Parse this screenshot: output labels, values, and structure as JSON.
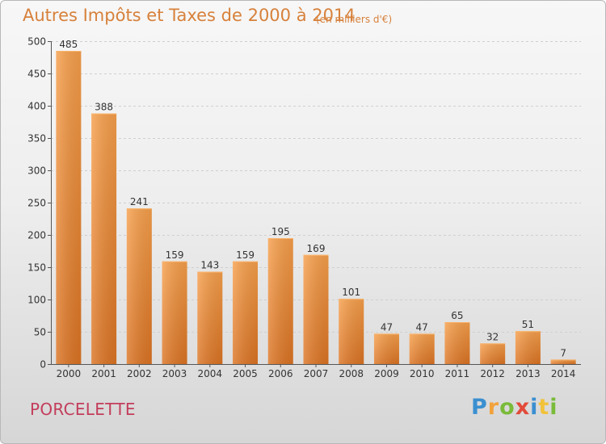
{
  "chart_data": {
    "type": "bar",
    "title": "Autres Impôts et Taxes de 2000 à 2014",
    "unit_note": "(en milliers d'€)",
    "categories": [
      "2000",
      "2001",
      "2002",
      "2003",
      "2004",
      "2005",
      "2006",
      "2007",
      "2008",
      "2009",
      "2010",
      "2011",
      "2012",
      "2013",
      "2014"
    ],
    "values": [
      485,
      388,
      241,
      159,
      143,
      159,
      195,
      169,
      101,
      47,
      47,
      65,
      32,
      51,
      7
    ],
    "ylim": [
      0,
      500
    ],
    "yticks": [
      0,
      50,
      100,
      150,
      200,
      250,
      300,
      350,
      400,
      450,
      500
    ],
    "grid": true,
    "bar_color": "#f0923a"
  },
  "footer": {
    "city": "PORCELETTE",
    "logo_letters": [
      {
        "ch": "P",
        "color": "#3a8fd0"
      },
      {
        "ch": "r",
        "color": "#f2a23a"
      },
      {
        "ch": "o",
        "color": "#7abb3a"
      },
      {
        "ch": "x",
        "color": "#e24a3a"
      },
      {
        "ch": "i",
        "color": "#3a8fd0"
      },
      {
        "ch": "t",
        "color": "#f2c23a"
      },
      {
        "ch": "i",
        "color": "#7abb3a"
      }
    ]
  }
}
